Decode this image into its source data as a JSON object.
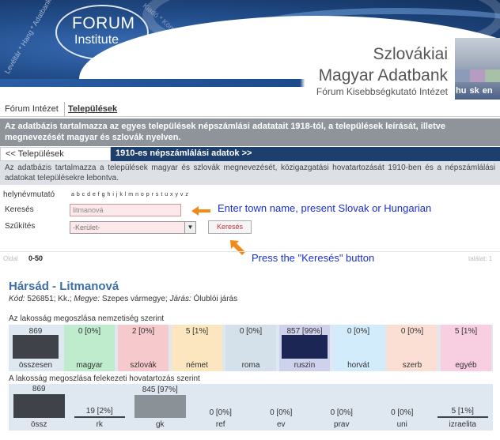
{
  "header": {
    "logo_line1": "FORUM",
    "logo_line2": "Institute",
    "bg_words": "Levéltár * Hang * Adatbank *",
    "bg_words2": "Kiadó * Könyvtár * Rendezvény *",
    "title_line1": "Szlovákiai",
    "title_line2": "Magyar Adatbank",
    "subtitle": "Fórum Kisebbségkutató Intézet",
    "languages": "hu sk en",
    "colors": {
      "dark_blue": "#1d3f6e",
      "accent": "#3c6ea8"
    }
  },
  "nav": {
    "item1": "Fórum Intézet",
    "item2": "Települések"
  },
  "banner": {
    "text": "Az adatbázis tartalmazza az egyes települések népszámlási adatatait 1918-tól, a települések leírását, illetve megnevezését magyar és szlovák nyelven."
  },
  "subbar": {
    "back": "<< Települések",
    "current": "1910-es népszámlálási adatok >>"
  },
  "description": "Az adatbázis tartalmazza a települések magyar és szlovák megnevezését, közigazgatási hovatartozását 1910-ben és a népszámlálási adatokat településekre lebontva.",
  "search": {
    "index_label": "helynévmutató",
    "alphabet": "a b c d e f g h i j k l m n o p r s t u x y v z",
    "search_label": "Keresés",
    "search_value": "litmanová",
    "filter_label": "Szűkítés",
    "filter_value": "-Kerület-",
    "button": "Keresés",
    "annotation1": "Enter town name, present Slovak or Hungarian",
    "annotation2": "Press the \"Keresés\" button"
  },
  "pager": {
    "label": "Oldal",
    "range": "0-50",
    "right": "találat: 1"
  },
  "town": {
    "title": "Hársád - Litmanová",
    "code_label": "Kód:",
    "code": "526851;",
    "kk_label": "Kk.;",
    "county_label": "Megye:",
    "county": "Szepes vármegye;",
    "district_label": "Járás:",
    "district": "Ólublói járás"
  },
  "nationality": {
    "title": "Az lakosság megoszlása nemzetiség szerint",
    "items": [
      {
        "value": "869",
        "name": "összesen",
        "bg": "#dfe8f1",
        "bar": "#3f4349",
        "fill": 1.0
      },
      {
        "value": "0 [0%]",
        "name": "magyar",
        "bg": "#bfeccd",
        "bar": "#3f4349",
        "fill": 0
      },
      {
        "value": "2 [0%]",
        "name": "szlovák",
        "bg": "#f6c9cc",
        "bar": "#3f4349",
        "fill": 0
      },
      {
        "value": "5 [1%]",
        "name": "német",
        "bg": "#fbe6bf",
        "bar": "#3f4349",
        "fill": 0
      },
      {
        "value": "0 [0%]",
        "name": "roma",
        "bg": "#d4e0ea",
        "bar": "#3f4349",
        "fill": 0
      },
      {
        "value": "857 [99%]",
        "name": "ruszin",
        "bg": "#cfd2ec",
        "bar": "#1c2655",
        "fill": 0.99
      },
      {
        "value": "0 [0%]",
        "name": "horvát",
        "bg": "#d3ecfb",
        "bar": "#3f4349",
        "fill": 0
      },
      {
        "value": "0 [0%]",
        "name": "szerb",
        "bg": "#fbdfd4",
        "bar": "#3f4349",
        "fill": 0
      },
      {
        "value": "5 [1%]",
        "name": "egyéb",
        "bg": "#f7cfe0",
        "bar": "#3f4349",
        "fill": 0
      }
    ]
  },
  "religion": {
    "title": "A lakosság megoszlása felekezeti hovatartozás szerint",
    "items": [
      {
        "value": "869",
        "name": "össz",
        "bar": "#3f4349",
        "fill": 1.0
      },
      {
        "value": "19 [2%]",
        "name": "rk",
        "bar": "#3f4349",
        "fill": 0.02
      },
      {
        "value": "845 [97%]",
        "name": "gk",
        "bar": "#8a9298",
        "fill": 0.97
      },
      {
        "value": "0 [0%]",
        "name": "ref",
        "bar": "#3f4349",
        "fill": 0
      },
      {
        "value": "0 [0%]",
        "name": "ev",
        "bar": "#3f4349",
        "fill": 0
      },
      {
        "value": "0 [0%]",
        "name": "prav",
        "bar": "#3f4349",
        "fill": 0
      },
      {
        "value": "0 [0%]",
        "name": "uni",
        "bar": "#3f4349",
        "fill": 0
      },
      {
        "value": "5 [1%]",
        "name": "izraelita",
        "bar": "#3f4349",
        "fill": 0.01
      }
    ]
  }
}
